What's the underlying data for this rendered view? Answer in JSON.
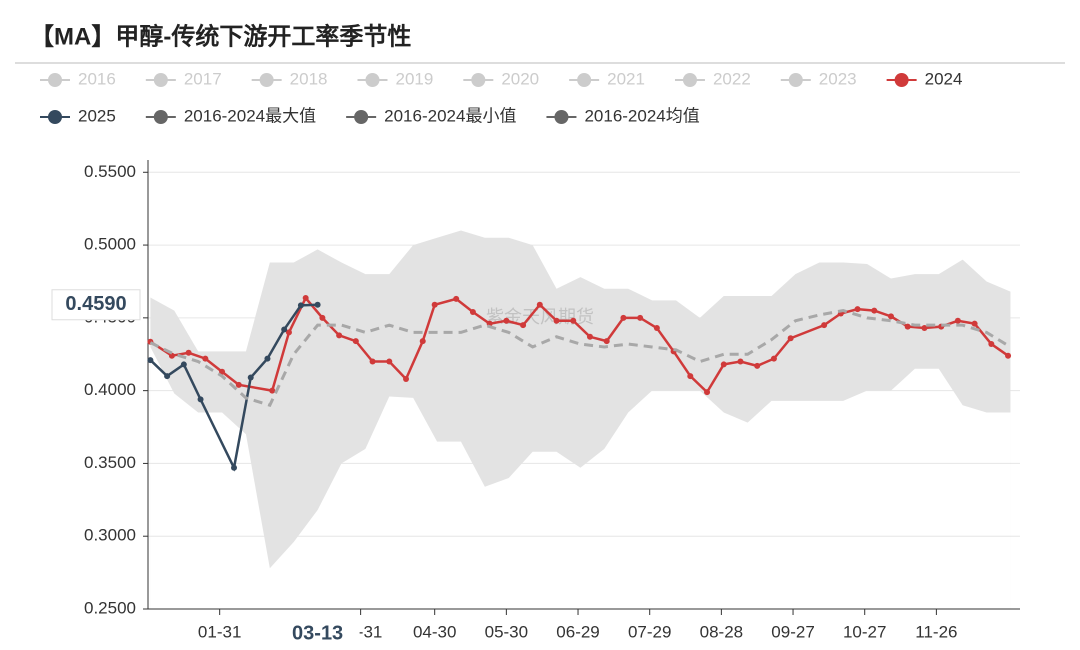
{
  "chart_data": {
    "type": "seasonal_line",
    "title": "【MA】甲醇-传统下游开工率季节性",
    "watermark": "紫金天风期货",
    "xlim": [
      1,
      366
    ],
    "xticks": [
      {
        "value": 31,
        "label": "01-31"
      },
      {
        "value": 90,
        "label": "03-31"
      },
      {
        "value": 121,
        "label": "04-30"
      },
      {
        "value": 151,
        "label": "05-30"
      },
      {
        "value": 181,
        "label": "06-29"
      },
      {
        "value": 211,
        "label": "07-29"
      },
      {
        "value": 241,
        "label": "08-28"
      },
      {
        "value": 271,
        "label": "09-27"
      },
      {
        "value": 301,
        "label": "10-27"
      },
      {
        "value": 331,
        "label": "11-26"
      }
    ],
    "ylim": [
      0.25,
      0.555
    ],
    "yticks": [
      {
        "value": 0.25,
        "label": "0.2500"
      },
      {
        "value": 0.3,
        "label": "0.3000"
      },
      {
        "value": 0.35,
        "label": "0.3500"
      },
      {
        "value": 0.4,
        "label": "0.4000"
      },
      {
        "value": 0.45,
        "label": "0.4500"
      },
      {
        "value": 0.5,
        "label": "0.5000"
      },
      {
        "value": 0.55,
        "label": "0.5500"
      }
    ],
    "grid": true,
    "pointer": {
      "x": 72,
      "y": 0.459,
      "x_label": "03-13",
      "y_label": "0.4590"
    },
    "series": [
      {
        "name": "2016",
        "color": "#cccccc",
        "visible": false
      },
      {
        "name": "2017",
        "color": "#cccccc",
        "visible": false
      },
      {
        "name": "2018",
        "color": "#cccccc",
        "visible": false
      },
      {
        "name": "2019",
        "color": "#cccccc",
        "visible": false
      },
      {
        "name": "2020",
        "color": "#cccccc",
        "visible": false
      },
      {
        "name": "2021",
        "color": "#cccccc",
        "visible": false
      },
      {
        "name": "2022",
        "color": "#cccccc",
        "visible": false
      },
      {
        "name": "2023",
        "color": "#cccccc",
        "visible": false
      },
      {
        "name": "2024",
        "color": "#d03a3a",
        "role": "line",
        "x": [
          2,
          11,
          18,
          25,
          32,
          39,
          53,
          60,
          67,
          74,
          81,
          88,
          95,
          102,
          109,
          116,
          121,
          130,
          137,
          144,
          151,
          158,
          165,
          172,
          179,
          186,
          193,
          200,
          207,
          214,
          221,
          228,
          235,
          242,
          249,
          256,
          263,
          270,
          284,
          291,
          298,
          305,
          312,
          319,
          326,
          333,
          340,
          347,
          354,
          361
        ],
        "values": [
          0.4336,
          0.424,
          0.426,
          0.422,
          0.413,
          0.404,
          0.4,
          0.44,
          0.4636,
          0.45,
          0.438,
          0.434,
          0.42,
          0.42,
          0.408,
          0.434,
          0.459,
          0.463,
          0.454,
          0.446,
          0.448,
          0.445,
          0.459,
          0.448,
          0.448,
          0.437,
          0.434,
          0.45,
          0.45,
          0.443,
          0.427,
          0.41,
          0.399,
          0.418,
          0.42,
          0.417,
          0.422,
          0.436,
          0.445,
          0.453,
          0.456,
          0.455,
          0.451,
          0.444,
          0.443,
          0.444,
          0.448,
          0.446,
          0.432,
          0.424
        ]
      },
      {
        "name": "2025",
        "color": "#34495e",
        "role": "line",
        "x": [
          2,
          9,
          16,
          23,
          37,
          44,
          51,
          58,
          65,
          72
        ],
        "values": [
          0.421,
          0.41,
          0.418,
          0.394,
          0.347,
          0.409,
          0.422,
          0.442,
          0.4586,
          0.459
        ]
      },
      {
        "name": "2016-2024最大值",
        "color": "#666666",
        "role": "band_max",
        "x": [
          2,
          12,
          22,
          32,
          42,
          52,
          62,
          72,
          82,
          92,
          102,
          112,
          122,
          132,
          142,
          152,
          162,
          172,
          182,
          192,
          202,
          212,
          222,
          232,
          242,
          252,
          262,
          272,
          282,
          292,
          302,
          312,
          322,
          332,
          342,
          352,
          362
        ],
        "values": [
          0.464,
          0.455,
          0.427,
          0.427,
          0.427,
          0.488,
          0.488,
          0.497,
          0.488,
          0.48,
          0.48,
          0.5,
          0.505,
          0.51,
          0.505,
          0.505,
          0.5,
          0.47,
          0.478,
          0.47,
          0.47,
          0.462,
          0.462,
          0.45,
          0.465,
          0.465,
          0.465,
          0.48,
          0.488,
          0.488,
          0.487,
          0.477,
          0.48,
          0.48,
          0.49,
          0.475,
          0.468
        ]
      },
      {
        "name": "2016-2024最小值",
        "color": "#666666",
        "role": "band_min",
        "x": [
          2,
          12,
          22,
          32,
          42,
          52,
          62,
          72,
          82,
          92,
          102,
          112,
          122,
          132,
          142,
          152,
          162,
          172,
          182,
          192,
          202,
          212,
          222,
          232,
          242,
          252,
          262,
          272,
          282,
          292,
          302,
          312,
          322,
          332,
          342,
          352,
          362
        ],
        "values": [
          0.43,
          0.398,
          0.385,
          0.385,
          0.37,
          0.278,
          0.296,
          0.318,
          0.35,
          0.36,
          0.396,
          0.395,
          0.365,
          0.365,
          0.334,
          0.34,
          0.358,
          0.358,
          0.347,
          0.36,
          0.385,
          0.4,
          0.4,
          0.4,
          0.385,
          0.378,
          0.393,
          0.393,
          0.393,
          0.393,
          0.4,
          0.4,
          0.415,
          0.415,
          0.39,
          0.385,
          0.385
        ]
      },
      {
        "name": "2016-2024均值",
        "color": "#666666",
        "role": "mean",
        "x": [
          2,
          12,
          22,
          32,
          42,
          52,
          62,
          72,
          82,
          92,
          102,
          112,
          122,
          132,
          142,
          152,
          162,
          172,
          182,
          192,
          202,
          212,
          222,
          232,
          242,
          252,
          262,
          272,
          282,
          292,
          302,
          312,
          322,
          332,
          342,
          352,
          362
        ],
        "values": [
          0.433,
          0.425,
          0.42,
          0.41,
          0.395,
          0.39,
          0.425,
          0.445,
          0.445,
          0.44,
          0.445,
          0.44,
          0.44,
          0.44,
          0.445,
          0.44,
          0.43,
          0.437,
          0.432,
          0.43,
          0.432,
          0.43,
          0.428,
          0.42,
          0.425,
          0.425,
          0.435,
          0.448,
          0.452,
          0.455,
          0.45,
          0.448,
          0.445,
          0.445,
          0.445,
          0.44,
          0.43
        ]
      }
    ]
  }
}
